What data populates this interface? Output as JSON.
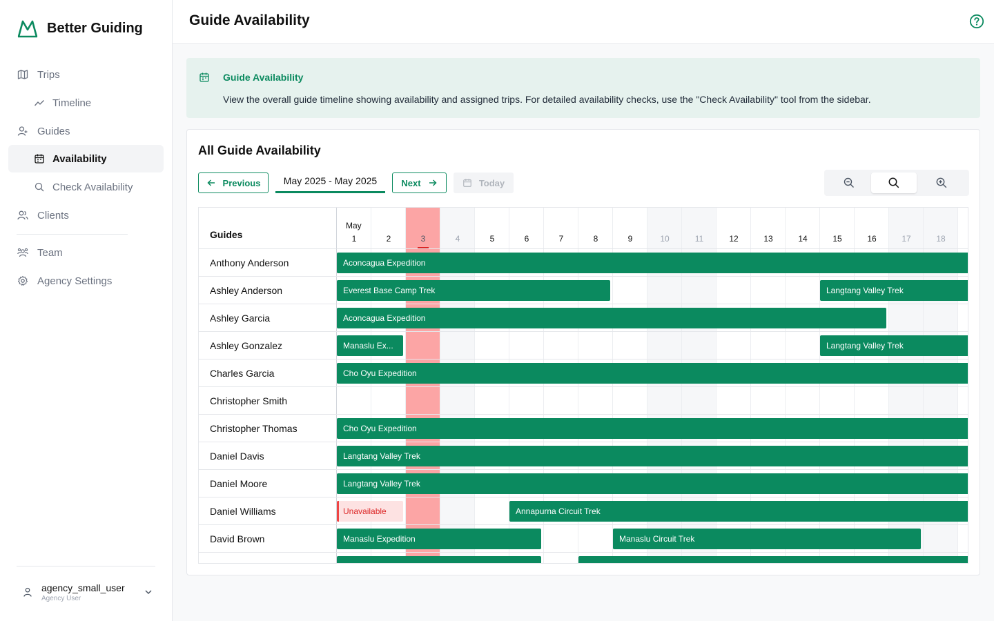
{
  "app": {
    "name": "Better Guiding",
    "brand_color": "#0b8a5f"
  },
  "sidebar": {
    "items": [
      {
        "label": "Trips",
        "icon": "map-icon"
      },
      {
        "label": "Timeline",
        "icon": "trend-icon"
      },
      {
        "label": "Guides",
        "icon": "user-plus-icon"
      },
      {
        "label": "Availability",
        "icon": "calendar-icon"
      },
      {
        "label": "Check Availability",
        "icon": "search-icon"
      },
      {
        "label": "Clients",
        "icon": "users-icon"
      },
      {
        "label": "Team",
        "icon": "team-icon"
      },
      {
        "label": "Agency Settings",
        "icon": "gear-icon"
      }
    ],
    "user": {
      "name": "agency_small_user",
      "role": "Agency User"
    }
  },
  "header": {
    "title": "Guide Availability"
  },
  "banner": {
    "title": "Guide Availability",
    "text": "View the overall guide timeline showing availability and assigned trips. For detailed availability checks, use the \"Check Availability\" tool from the sidebar."
  },
  "card": {
    "title": "All Guide Availability",
    "previous_label": "Previous",
    "next_label": "Next",
    "today_label": "Today",
    "range_label": "May 2025 - May 2025"
  },
  "timeline": {
    "guides_header": "Guides",
    "month_label": "May",
    "days": [
      "1",
      "2",
      "3",
      "4",
      "5",
      "6",
      "7",
      "8",
      "9",
      "10",
      "11",
      "12",
      "13",
      "14",
      "15",
      "16",
      "17",
      "18"
    ],
    "weekend_days": [
      "4",
      "10",
      "11",
      "17",
      "18"
    ],
    "today": "3",
    "guides": [
      "Anthony Anderson",
      "Ashley Anderson",
      "Ashley Garcia",
      "Ashley Gonzalez",
      "Charles Garcia",
      "Christopher Smith",
      "Christopher Thomas",
      "Daniel Davis",
      "Daniel Moore",
      "Daniel Williams",
      "David Brown"
    ],
    "bars": [
      "Aconcagua Expedition",
      "Everest Base Camp Trek",
      "Langtang Valley Trek",
      "Aconcagua Expedition",
      "Manaslu Ex...",
      "Langtang Valley Trek",
      "Cho Oyu Expedition",
      "Cho Oyu Expedition",
      "Langtang Valley Trek",
      "Langtang Valley Trek",
      "Unavailable",
      "Annapurna Circuit Trek",
      "Manaslu Expedition",
      "Manaslu Circuit Trek"
    ]
  }
}
